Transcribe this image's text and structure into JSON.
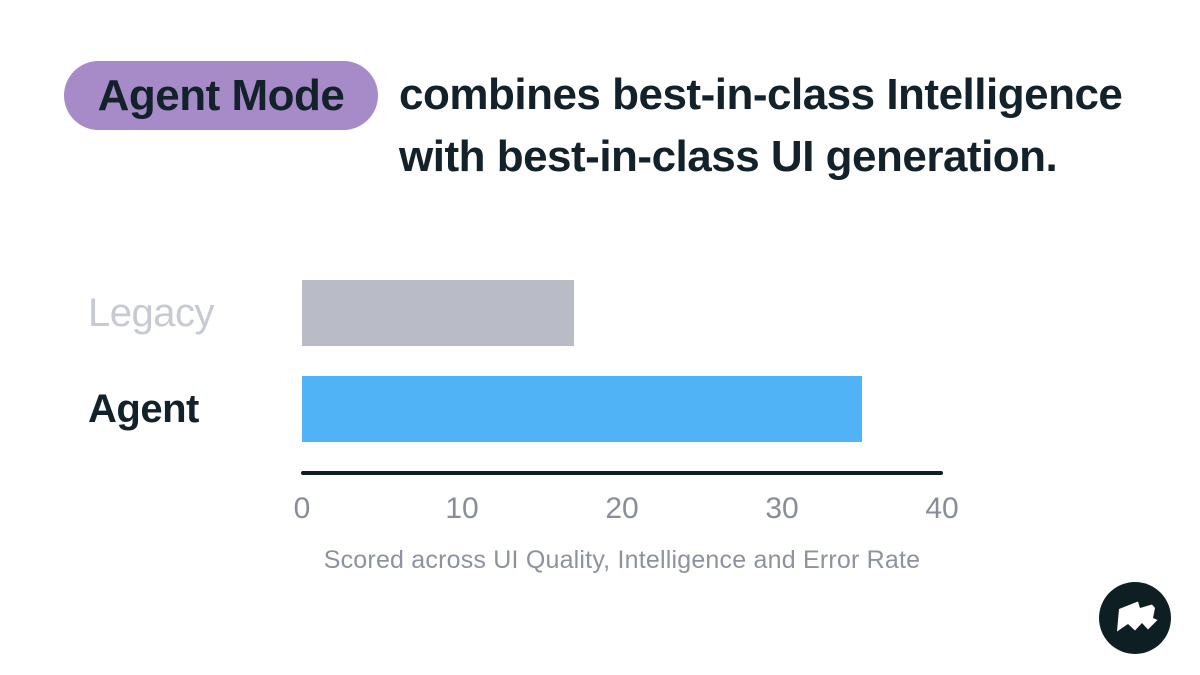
{
  "page": {
    "background": "#FFFFFF"
  },
  "title": {
    "badge": "Agent Mode",
    "badge_bg": "#A78BC9",
    "line1": "combines best-in-class Intelligence",
    "line2": "with best-in-class UI generation.",
    "text_color": "#13222A"
  },
  "chart_data": {
    "type": "bar",
    "orientation": "horizontal",
    "categories": [
      "Legacy",
      "Agent"
    ],
    "values": [
      17,
      35
    ],
    "xlim": [
      0,
      40
    ],
    "x_ticks": [
      0,
      10,
      20,
      30,
      40
    ],
    "bar_colors": [
      "#B9BCC6",
      "#4FB3F5"
    ],
    "label_colors": [
      "#C7CAD4",
      "#13222A"
    ],
    "axis_color": "#101D21",
    "tick_color": "#888D99",
    "caption": "Scored across UI Quality, Intelligence and Error Rate",
    "caption_color": "#8D92A0",
    "grid": false,
    "legend": false
  },
  "logo": {
    "name": "flag-logo",
    "circle_color": "#0D1F23",
    "glyph_color": "#FFFFFF"
  }
}
